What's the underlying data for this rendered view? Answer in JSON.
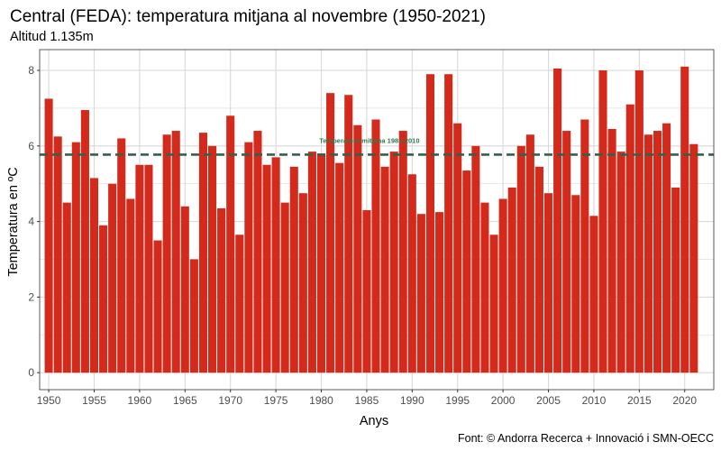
{
  "chart_data": {
    "type": "bar",
    "title": "Central (FEDA): temperatura mitjana al novembre (1950-2021)",
    "subtitle": "Altitud 1.135m",
    "xlabel": "Anys",
    "ylabel": "Temperatura en ºC",
    "caption": "Font: © Andorra Recerca + Innovació i SMN-OECC",
    "x": [
      1950,
      1951,
      1952,
      1953,
      1954,
      1955,
      1956,
      1957,
      1958,
      1959,
      1960,
      1961,
      1962,
      1963,
      1964,
      1965,
      1966,
      1967,
      1968,
      1969,
      1970,
      1971,
      1972,
      1973,
      1974,
      1975,
      1976,
      1977,
      1978,
      1979,
      1980,
      1981,
      1982,
      1983,
      1984,
      1985,
      1986,
      1987,
      1988,
      1989,
      1990,
      1991,
      1992,
      1993,
      1994,
      1995,
      1996,
      1997,
      1998,
      1999,
      2000,
      2001,
      2002,
      2003,
      2004,
      2005,
      2006,
      2007,
      2008,
      2009,
      2010,
      2011,
      2012,
      2013,
      2014,
      2015,
      2016,
      2017,
      2018,
      2019,
      2020,
      2021
    ],
    "values": [
      7.25,
      6.25,
      4.5,
      6.1,
      6.95,
      5.15,
      3.9,
      5.0,
      6.2,
      4.6,
      5.5,
      5.5,
      3.5,
      6.3,
      6.4,
      4.4,
      3.0,
      6.35,
      6.0,
      4.35,
      6.8,
      3.65,
      6.1,
      6.4,
      5.5,
      5.7,
      4.5,
      5.45,
      4.75,
      5.85,
      5.8,
      7.4,
      5.55,
      7.35,
      6.55,
      4.3,
      6.7,
      5.45,
      5.85,
      6.4,
      5.25,
      4.2,
      7.9,
      4.25,
      7.9,
      6.6,
      5.35,
      6.0,
      4.5,
      3.65,
      4.6,
      4.9,
      6.0,
      6.3,
      5.45,
      4.75,
      8.05,
      6.4,
      4.7,
      6.7,
      4.15,
      8.0,
      6.45,
      5.85,
      7.1,
      8.0,
      6.3,
      6.4,
      6.6,
      4.9,
      8.1,
      6.05
    ],
    "x_ticks": [
      1950,
      1955,
      1960,
      1965,
      1970,
      1975,
      1980,
      1985,
      1990,
      1995,
      2000,
      2005,
      2010,
      2015,
      2020
    ],
    "y_ticks": [
      0,
      2,
      4,
      6,
      8
    ],
    "ylim": [
      -0.45,
      8.55
    ],
    "xlim": [
      1949.0,
      2023.2
    ],
    "reference_line": {
      "value": 5.77,
      "label": "Temperatura mitjana 1981-2010"
    },
    "grid": true,
    "colors": {
      "bar": "#d42a1c",
      "reference_line": "#36604b",
      "reference_label": "#2e7a4e",
      "grid": "#d9d9d9",
      "panel_border": "#333333"
    }
  }
}
